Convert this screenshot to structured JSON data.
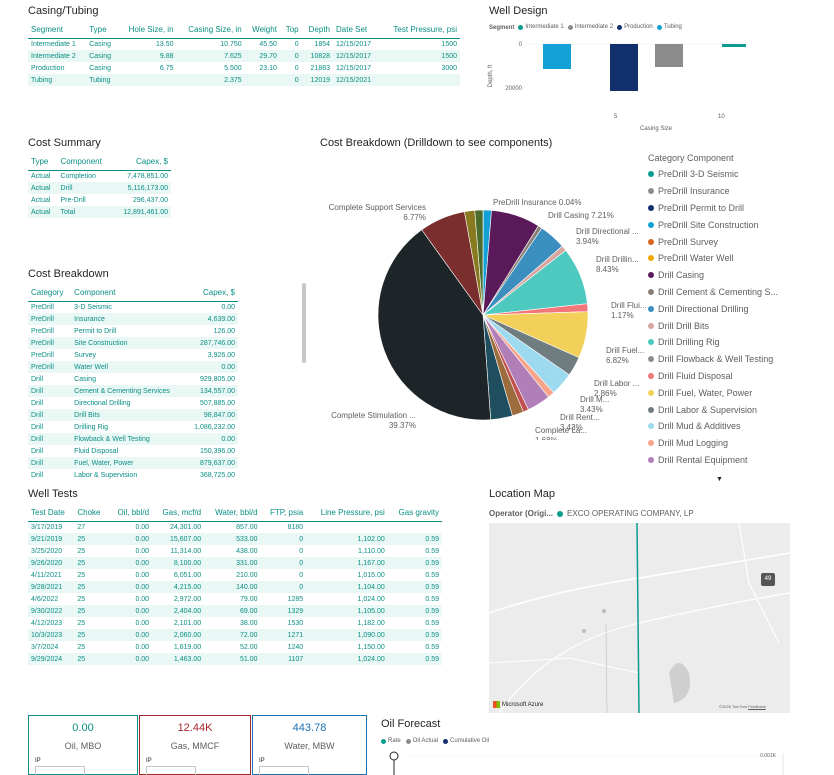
{
  "casing": {
    "title": "Casing/Tubing",
    "headers": [
      "Segment",
      "Type",
      "Hole Size, in",
      "Casing Size, in",
      "Weight",
      "Top",
      "Depth",
      "Date Set",
      "Test Pressure, psi"
    ],
    "rows": [
      [
        "Intermediate 1",
        "Casing",
        "13.50",
        "10.750",
        "45.50",
        "0",
        "1854",
        "12/15/2017",
        "1500"
      ],
      [
        "Intermediate 2",
        "Casing",
        "9.88",
        "7.625",
        "29.70",
        "0",
        "10828",
        "12/15/2017",
        "1500"
      ],
      [
        "Production",
        "Casing",
        "6.75",
        "5.500",
        "23.10",
        "0",
        "21883",
        "12/15/2017",
        "3000"
      ],
      [
        "Tubing",
        "Tubing",
        "",
        "2.375",
        "",
        "0",
        "12019",
        "12/15/2021",
        ""
      ]
    ]
  },
  "well_design": {
    "title": "Well Design",
    "legend_title": "Segment",
    "legend": [
      {
        "label": "Intermediate 1",
        "color": "#0a9d8f"
      },
      {
        "label": "Intermediate 2",
        "color": "#8c8c8c"
      },
      {
        "label": "Production",
        "color": "#12306e"
      },
      {
        "label": "Tubing",
        "color": "#13a0d6"
      }
    ],
    "ylabel": "Depth, ft",
    "xlabel": "Casing Size",
    "yticks": [
      "0",
      "20000"
    ],
    "xticks": [
      "5",
      "10"
    ]
  },
  "cost_summary": {
    "title": "Cost Summary",
    "headers": [
      "Type",
      "Component",
      "Capex, $"
    ],
    "rows": [
      [
        "Actual",
        "Completion",
        "7,478,851.00"
      ],
      [
        "Actual",
        "Drill",
        "5,116,173.00"
      ],
      [
        "Actual",
        "Pre-Drill",
        "296,437.00"
      ],
      [
        "Actual",
        "Total",
        "12,891,461.00"
      ]
    ]
  },
  "cost_breakdown_table": {
    "title": "Cost Breakdown",
    "headers": [
      "Category",
      "Component",
      "Capex, $"
    ],
    "rows": [
      [
        "PreDrill",
        "3-D Seismic",
        "0.00"
      ],
      [
        "PreDrill",
        "Insurance",
        "4,639.00"
      ],
      [
        "PreDrill",
        "Permit to Drill",
        "126.00"
      ],
      [
        "PreDrill",
        "Site Construction",
        "287,746.00"
      ],
      [
        "PreDrill",
        "Survey",
        "3,926.00"
      ],
      [
        "PreDrill",
        "Water Well",
        "0.00"
      ],
      [
        "Drill",
        "Casing",
        "929,805.00"
      ],
      [
        "Drill",
        "Cement & Cementing Services",
        "134,557.00"
      ],
      [
        "Drill",
        "Directional Drilling",
        "507,885.00"
      ],
      [
        "Drill",
        "Drill Bits",
        "98,847.00"
      ],
      [
        "Drill",
        "Drilling Rig",
        "1,086,232.00"
      ],
      [
        "Drill",
        "Flowback & Well Testing",
        "0.00"
      ],
      [
        "Drill",
        "Fluid Disposal",
        "150,396.00"
      ],
      [
        "Drill",
        "Fuel, Water, Power",
        "879,637.00"
      ],
      [
        "Drill",
        "Labor & Supervision",
        "368,725.00"
      ]
    ]
  },
  "pie": {
    "title": "Cost Breakdown (Drilldown to see components)",
    "legend_title": "Category Component",
    "legend": [
      {
        "label": "PreDrill 3-D Seismic",
        "color": "#0a9d8f"
      },
      {
        "label": "PreDrill Insurance",
        "color": "#8c8c8c"
      },
      {
        "label": "PreDrill Permit to Drill",
        "color": "#12306e"
      },
      {
        "label": "PreDrill Site Construction",
        "color": "#13a0d6"
      },
      {
        "label": "PreDrill Survey",
        "color": "#d8641d"
      },
      {
        "label": "PreDrill Water Well",
        "color": "#f2a900"
      },
      {
        "label": "Drill Casing",
        "color": "#5a1a5a"
      },
      {
        "label": "Drill Cement & Cementing S...",
        "color": "#8a7f78"
      },
      {
        "label": "Drill Directional Drilling",
        "color": "#3a8fbf"
      },
      {
        "label": "Drill Drill Bits",
        "color": "#d9a7a0"
      },
      {
        "label": "Drill Drilling Rig",
        "color": "#4ec9bf"
      },
      {
        "label": "Drill Flowback & Well Testing",
        "color": "#8c8c8c"
      },
      {
        "label": "Drill Fluid Disposal",
        "color": "#f2777a"
      },
      {
        "label": "Drill Fuel, Water, Power",
        "color": "#f3d05a"
      },
      {
        "label": "Drill Labor & Supervision",
        "color": "#6f7c80"
      },
      {
        "label": "Drill Mud & Additives",
        "color": "#9ddaf0"
      },
      {
        "label": "Drill Mud Logging",
        "color": "#f7a48a"
      },
      {
        "label": "Drill Rental Equipment",
        "color": "#b07fb8"
      }
    ],
    "labels": [
      {
        "text": "Complete Support Services",
        "pct": "6.77%"
      },
      {
        "text": "PreDrill Insurance 0.04%",
        "pct": ""
      },
      {
        "text": "Drill Casing 7.21%",
        "pct": ""
      },
      {
        "text": "Drill Directional ...",
        "pct": "3.94%"
      },
      {
        "text": "Drill Drillin...",
        "pct": "8.43%"
      },
      {
        "text": "Drill Flui...",
        "pct": "1.17%"
      },
      {
        "text": "Drill Fuel...",
        "pct": "6.82%"
      },
      {
        "text": "Drill Labor ...",
        "pct": "2.86%"
      },
      {
        "text": "Drill M...",
        "pct": "3.43%"
      },
      {
        "text": "Drill Rent...",
        "pct": "3.43%"
      },
      {
        "text": "Complete La...",
        "pct": "1.68%"
      },
      {
        "text": "Complete Stimulation ...",
        "pct": "39.37%"
      }
    ]
  },
  "well_tests": {
    "title": "Well Tests",
    "headers": [
      "Test Date",
      "Choke",
      "Oil, bbl/d",
      "Gas, mcf/d",
      "Water, bbl/d",
      "FTP, psia",
      "Line Pressure, psi",
      "Gas gravity"
    ],
    "rows": [
      [
        "3/17/2019",
        "27",
        "0.00",
        "24,301.00",
        "857.00",
        "8180",
        "",
        ""
      ],
      [
        "9/21/2019",
        "25",
        "0.00",
        "15,607.00",
        "533.00",
        "0",
        "1,102.00",
        "0.59"
      ],
      [
        "3/25/2020",
        "25",
        "0.00",
        "11,314.00",
        "438.00",
        "0",
        "1,110.00",
        "0.59"
      ],
      [
        "9/26/2020",
        "25",
        "0.00",
        "8,100.00",
        "331.00",
        "0",
        "1,167.00",
        "0.59"
      ],
      [
        "4/11/2021",
        "25",
        "0.00",
        "6,051.00",
        "210.00",
        "0",
        "1,015.00",
        "0.59"
      ],
      [
        "9/28/2021",
        "25",
        "0.00",
        "4,215.00",
        "140.00",
        "0",
        "1,104.00",
        "0.59"
      ],
      [
        "4/6/2022",
        "25",
        "0.00",
        "2,972.00",
        "79.00",
        "1285",
        "1,024.00",
        "0.59"
      ],
      [
        "9/30/2022",
        "25",
        "0.00",
        "2,404.00",
        "69.00",
        "1329",
        "1,105.00",
        "0.59"
      ],
      [
        "4/12/2023",
        "25",
        "0.00",
        "2,101.00",
        "38.00",
        "1530",
        "1,182.00",
        "0.59"
      ],
      [
        "10/3/2023",
        "25",
        "0.00",
        "2,060.00",
        "72.00",
        "1271",
        "1,090.00",
        "0.59"
      ],
      [
        "3/7/2024",
        "25",
        "0.00",
        "1,619.00",
        "52.00",
        "1240",
        "1,150.00",
        "0.59"
      ],
      [
        "9/29/2024",
        "25",
        "0.00",
        "1,463.00",
        "51.00",
        "1107",
        "1,024.00",
        "0.59"
      ]
    ]
  },
  "map": {
    "title": "Location Map",
    "operator_label": "Operator (Origi...",
    "operator_value": "EXCO OPERATING COMPANY, LP",
    "attribution": "Microsoft Azure",
    "copyright": "©2025 TomTom",
    "feedback": "Feedback",
    "road_shield": "49"
  },
  "cards": [
    {
      "value": "0.00",
      "label": "Oil, MBO",
      "ip": "IP",
      "color": "#0a8f86"
    },
    {
      "value": "12.44K",
      "label": "Gas, MMCF",
      "ip": "IP",
      "color": "#a4262c"
    },
    {
      "value": "443.78",
      "label": "Water, MBW",
      "ip": "IP",
      "color": "#1a73b5"
    }
  ],
  "oil_forecast": {
    "title": "Oil Forecast",
    "legend": [
      {
        "label": "Rate",
        "color": "#0a9d8f"
      },
      {
        "label": "Oil Actual",
        "color": "#8c8c8c"
      },
      {
        "label": "Cumulative Oil",
        "color": "#12306e"
      }
    ],
    "ytick_right": "0.001K"
  }
}
